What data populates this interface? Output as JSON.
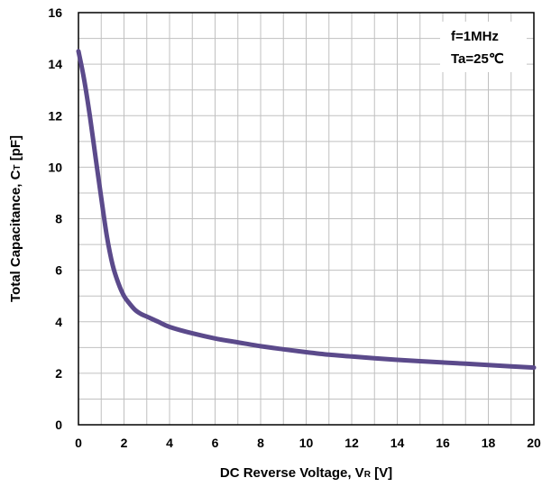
{
  "chart_data": {
    "type": "line",
    "xlabel_main": "DC Reverse Voltage, V",
    "xlabel_sub": "R",
    "xlabel_unit": " [V]",
    "ylabel_main": "Total Capacitance, C",
    "ylabel_sub": "T",
    "ylabel_unit": " [pF]",
    "xlim": [
      0,
      20
    ],
    "ylim": [
      0,
      16
    ],
    "xticks": [
      0,
      2,
      4,
      6,
      8,
      10,
      12,
      14,
      16,
      18,
      20
    ],
    "yticks": [
      0,
      2,
      4,
      6,
      8,
      10,
      12,
      14,
      16
    ],
    "grid": true,
    "annotation": [
      "f=1MHz",
      "Ta=25℃"
    ],
    "colors": {
      "series": "#5b4a8b",
      "grid": "#c0c0c0",
      "axis": "#000000"
    },
    "series": [
      {
        "x": [
          0,
          0.25,
          0.5,
          0.75,
          1.0,
          1.25,
          1.5,
          1.75,
          2.0,
          2.25,
          2.5,
          2.75,
          3.0,
          3.5,
          4.0,
          5.0,
          6.0,
          7.0,
          8.0,
          9.0,
          10.0,
          11.0,
          12.0,
          13.0,
          14.0,
          15.0,
          16.0,
          17.0,
          18.0,
          19.0,
          20.0
        ],
        "y": [
          14.5,
          13.4,
          12.0,
          10.4,
          8.8,
          7.3,
          6.2,
          5.5,
          5.0,
          4.7,
          4.45,
          4.3,
          4.2,
          4.0,
          3.8,
          3.55,
          3.35,
          3.2,
          3.05,
          2.93,
          2.82,
          2.72,
          2.65,
          2.58,
          2.52,
          2.47,
          2.42,
          2.37,
          2.32,
          2.27,
          2.22
        ]
      }
    ]
  }
}
